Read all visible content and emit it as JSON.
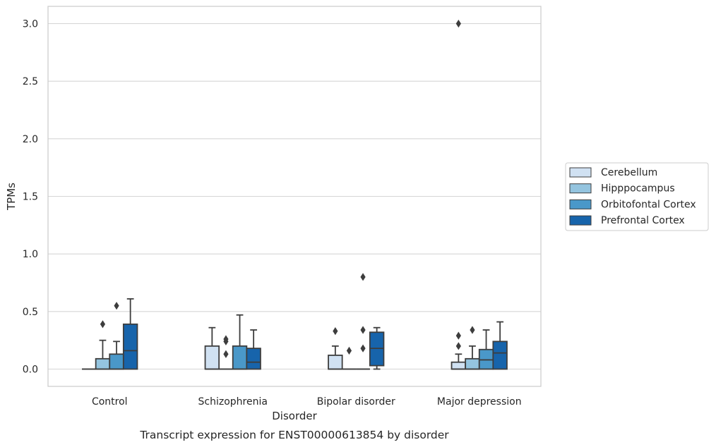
{
  "chart_data": {
    "type": "box",
    "xlabel": "Disorder",
    "ylabel": "TPMs",
    "caption": "Transcript expression for ENST00000613854 by disorder",
    "categories": [
      "Control",
      "Schizophrenia",
      "Bipolar disorder",
      "Major depression"
    ],
    "ylim": [
      -0.15,
      3.15
    ],
    "yticks": [
      0.0,
      0.5,
      1.0,
      1.5,
      2.0,
      2.5,
      3.0
    ],
    "ytick_labels": [
      "0.0",
      "0.5",
      "1.0",
      "1.5",
      "2.0",
      "2.5",
      "3.0"
    ],
    "grid": "horizontal",
    "legend_position": "right",
    "series": [
      {
        "name": "Cerebellum",
        "color": "#d0e1f2",
        "boxes": [
          {
            "q1": 0.0,
            "median": 0.0,
            "q3": 0.0,
            "whisker_low": 0.0,
            "whisker_high": 0.0,
            "outliers": []
          },
          {
            "q1": 0.0,
            "median": 0.0,
            "q3": 0.2,
            "whisker_low": 0.0,
            "whisker_high": 0.36,
            "outliers": []
          },
          {
            "q1": 0.0,
            "median": 0.0,
            "q3": 0.12,
            "whisker_low": 0.0,
            "whisker_high": 0.2,
            "outliers": [
              0.33
            ]
          },
          {
            "q1": 0.0,
            "median": 0.0,
            "q3": 0.06,
            "whisker_low": 0.0,
            "whisker_high": 0.13,
            "outliers": [
              0.2,
              0.29,
              3.0
            ]
          }
        ]
      },
      {
        "name": "Hipppocampus",
        "color": "#94c4df",
        "boxes": [
          {
            "q1": 0.0,
            "median": 0.0,
            "q3": 0.09,
            "whisker_low": 0.0,
            "whisker_high": 0.25,
            "outliers": [
              0.39
            ]
          },
          {
            "q1": 0.0,
            "median": 0.0,
            "q3": 0.0,
            "whisker_low": 0.0,
            "whisker_high": 0.0,
            "outliers": [
              0.13,
              0.24,
              0.26
            ]
          },
          {
            "q1": 0.0,
            "median": 0.0,
            "q3": 0.0,
            "whisker_low": 0.0,
            "whisker_high": 0.0,
            "outliers": [
              0.16
            ]
          },
          {
            "q1": 0.0,
            "median": 0.0,
            "q3": 0.09,
            "whisker_low": 0.0,
            "whisker_high": 0.2,
            "outliers": [
              0.34
            ]
          }
        ]
      },
      {
        "name": "Orbitofontal Cortex",
        "color": "#4a98c9",
        "boxes": [
          {
            "q1": 0.0,
            "median": 0.0,
            "q3": 0.13,
            "whisker_low": 0.0,
            "whisker_high": 0.24,
            "outliers": [
              0.55
            ]
          },
          {
            "q1": 0.0,
            "median": 0.0,
            "q3": 0.2,
            "whisker_low": 0.0,
            "whisker_high": 0.47,
            "outliers": []
          },
          {
            "q1": 0.0,
            "median": 0.0,
            "q3": 0.0,
            "whisker_low": 0.0,
            "whisker_high": 0.0,
            "outliers": [
              0.18,
              0.34,
              0.8
            ]
          },
          {
            "q1": 0.0,
            "median": 0.08,
            "q3": 0.17,
            "whisker_low": 0.0,
            "whisker_high": 0.34,
            "outliers": []
          }
        ]
      },
      {
        "name": "Prefrontal Cortex",
        "color": "#1764ab",
        "boxes": [
          {
            "q1": 0.0,
            "median": 0.16,
            "q3": 0.39,
            "whisker_low": 0.0,
            "whisker_high": 0.61,
            "outliers": []
          },
          {
            "q1": 0.0,
            "median": 0.06,
            "q3": 0.18,
            "whisker_low": 0.0,
            "whisker_high": 0.34,
            "outliers": []
          },
          {
            "q1": 0.03,
            "median": 0.18,
            "q3": 0.32,
            "whisker_low": 0.0,
            "whisker_high": 0.36,
            "outliers": []
          },
          {
            "q1": 0.0,
            "median": 0.14,
            "q3": 0.24,
            "whisker_low": 0.0,
            "whisker_high": 0.41,
            "outliers": []
          }
        ]
      }
    ]
  }
}
